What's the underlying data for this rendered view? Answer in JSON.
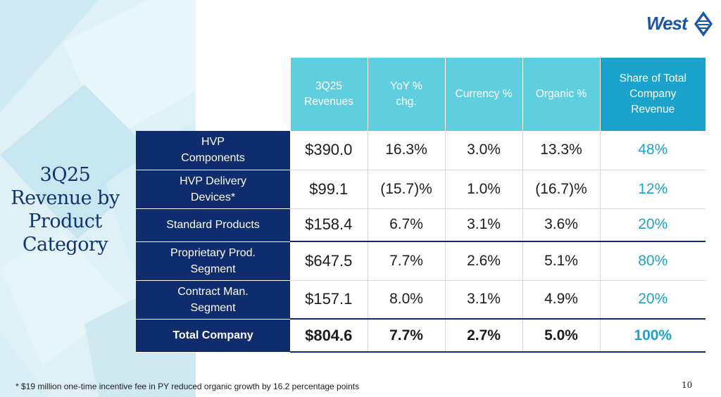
{
  "brand": {
    "logo_text": "West",
    "accent": "#1ba3cc",
    "navy": "#0f2c6e",
    "header_cyan": "#5fcfe0"
  },
  "title": "3Q25 Revenue by Product Category",
  "table": {
    "headers": [
      "3Q25 Revenues",
      "YoY % chg.",
      "Currency %",
      "Organic %",
      "Share of Total Company Revenue"
    ],
    "rows": [
      {
        "label": "HVP Components",
        "revenue": "$390.0",
        "yoy": "16.3%",
        "currency": "3.0%",
        "organic": "13.3%",
        "share": "48%"
      },
      {
        "label": "HVP Delivery Devices*",
        "revenue": "$99.1",
        "yoy": "(15.7)%",
        "currency": "1.0%",
        "organic": "(16.7)%",
        "share": "12%"
      },
      {
        "label": "Standard Products",
        "revenue": "$158.4",
        "yoy": "6.7%",
        "currency": "3.1%",
        "organic": "3.6%",
        "share": "20%"
      },
      {
        "label": "Proprietary Prod. Segment",
        "revenue": "$647.5",
        "yoy": "7.7%",
        "currency": "2.6%",
        "organic": "5.1%",
        "share": "80%"
      },
      {
        "label": "Contract Man. Segment",
        "revenue": "$157.1",
        "yoy": "8.0%",
        "currency": "3.1%",
        "organic": "4.9%",
        "share": "20%"
      },
      {
        "label": "Total Company",
        "revenue": "$804.6",
        "yoy": "7.7%",
        "currency": "2.7%",
        "organic": "5.0%",
        "share": "100%"
      }
    ]
  },
  "footnote": "* $19 million one-time incentive fee in PY reduced organic growth by 16.2 percentage points",
  "page_number": "10"
}
